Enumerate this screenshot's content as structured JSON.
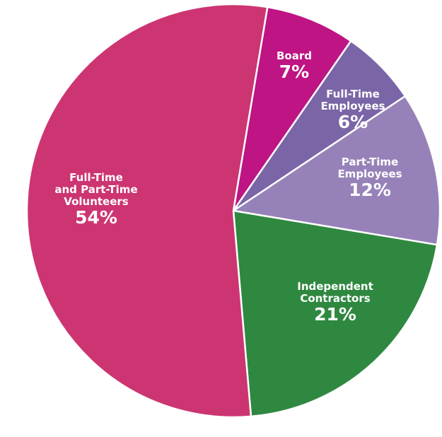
{
  "chart_data": {
    "type": "pie",
    "title": "",
    "slices": [
      {
        "label": "Board",
        "label_lines": [
          "Board"
        ],
        "value": 7,
        "value_label": "7%",
        "color": "#BE1484"
      },
      {
        "label": "Full-Time Employees",
        "label_lines": [
          "Full-Time",
          "Employees"
        ],
        "value": 6,
        "value_label": "6%",
        "color": "#7A65A6"
      },
      {
        "label": "Part-Time Employees",
        "label_lines": [
          "Part-Time",
          "Employees"
        ],
        "value": 12,
        "value_label": "12%",
        "color": "#9682B8"
      },
      {
        "label": "Independent Contractors",
        "label_lines": [
          "Independent",
          "Contractors"
        ],
        "value": 21,
        "value_label": "21%",
        "color": "#2F8840"
      },
      {
        "label": "Full-Time and Part-Time Volunteers",
        "label_lines": [
          "Full-Time",
          "and Part-Time",
          "Volunteers"
        ],
        "value": 54,
        "value_label": "54%",
        "color": "#CC3572"
      }
    ]
  }
}
